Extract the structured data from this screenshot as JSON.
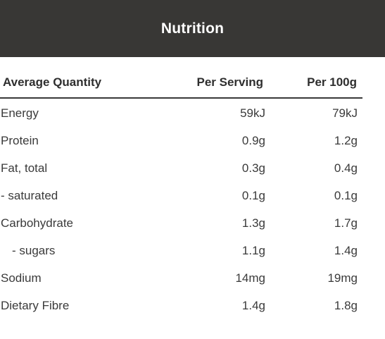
{
  "header": {
    "title": "Nutrition"
  },
  "table": {
    "columns": [
      "Average Quantity",
      "Per Serving",
      "Per 100g"
    ],
    "rows": [
      {
        "name": "Energy",
        "per_serving": "59kJ",
        "per_100g": "79kJ"
      },
      {
        "name": "Protein",
        "per_serving": "0.9g",
        "per_100g": "1.2g"
      },
      {
        "name": "Fat, total",
        "per_serving": "0.3g",
        "per_100g": "0.4g"
      },
      {
        "name": "- saturated",
        "per_serving": "0.1g",
        "per_100g": "0.1g"
      },
      {
        "name": "Carbohydrate",
        "per_serving": "1.3g",
        "per_100g": "1.7g"
      },
      {
        "name": "- sugars",
        "per_serving": "1.1g",
        "per_100g": "1.4g"
      },
      {
        "name": "Sodium",
        "per_serving": "14mg",
        "per_100g": "19mg"
      },
      {
        "name": "Dietary Fibre",
        "per_serving": "1.4g",
        "per_100g": "1.8g"
      }
    ]
  }
}
